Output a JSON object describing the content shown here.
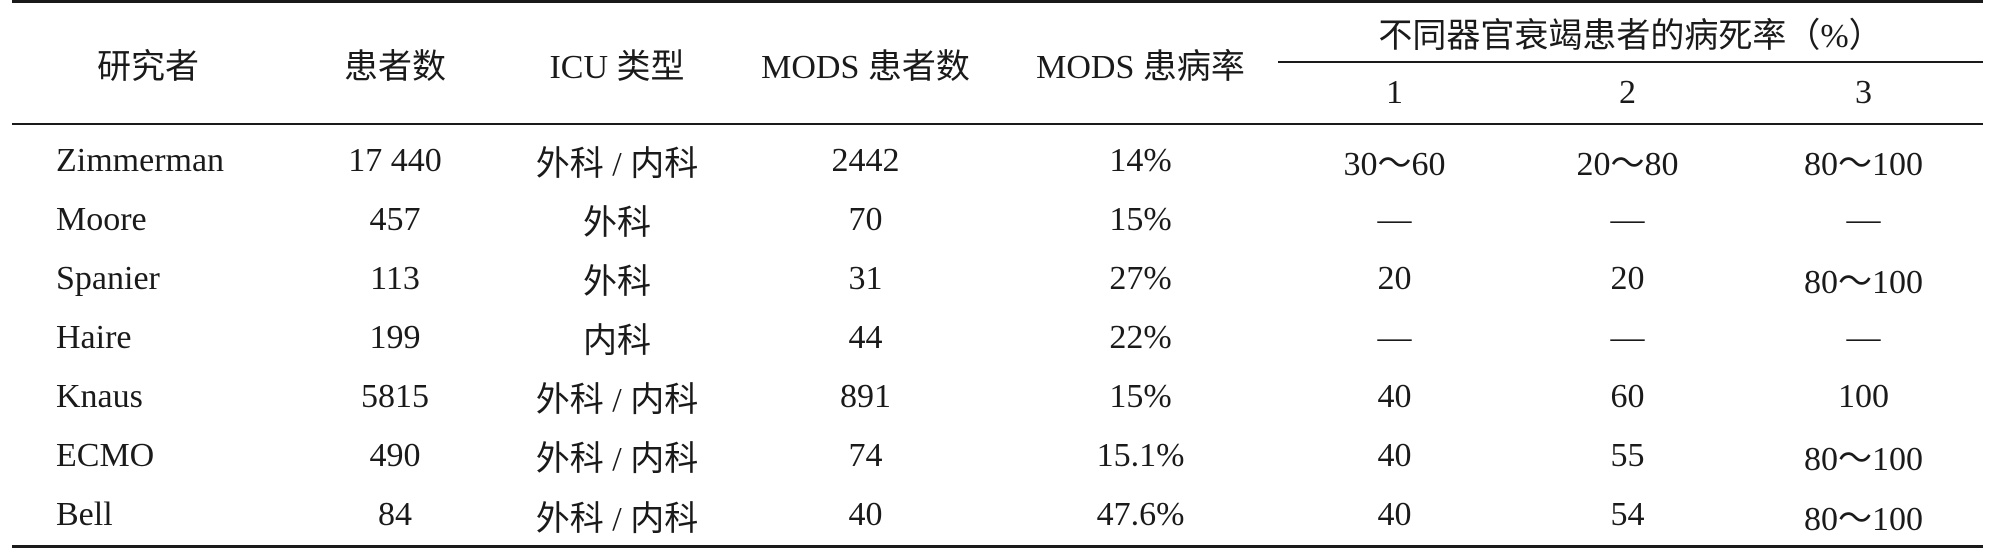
{
  "table": {
    "headers": {
      "researcher": "研究者",
      "patients": "患者数",
      "icu_type": "ICU 类型",
      "mods_patients": "MODS 患者数",
      "mods_rate": "MODS 患病率",
      "mortality_group": "不同器官衰竭患者的病死率（%）",
      "organ_counts": [
        "1",
        "2",
        "3"
      ]
    },
    "rows": [
      [
        "Zimmerman",
        "17 440",
        "外科 / 内科",
        "2442",
        "14%",
        "30～60",
        "20～80",
        "80～100"
      ],
      [
        "Moore",
        "457",
        "外科",
        "70",
        "15%",
        "—",
        "—",
        "—"
      ],
      [
        "Spanier",
        "113",
        "外科",
        "31",
        "27%",
        "20",
        "20",
        "80～100"
      ],
      [
        "Haire",
        "199",
        "内科",
        "44",
        "22%",
        "—",
        "—",
        "—"
      ],
      [
        "Knaus",
        "5815",
        "外科 / 内科",
        "891",
        "15%",
        "40",
        "60",
        "100"
      ],
      [
        "ECMO",
        "490",
        "外科 / 内科",
        "74",
        "15.1%",
        "40",
        "55",
        "80～100"
      ],
      [
        "Bell",
        "84",
        "外科 / 内科",
        "40",
        "47.6%",
        "40",
        "54",
        "80～100"
      ]
    ]
  }
}
